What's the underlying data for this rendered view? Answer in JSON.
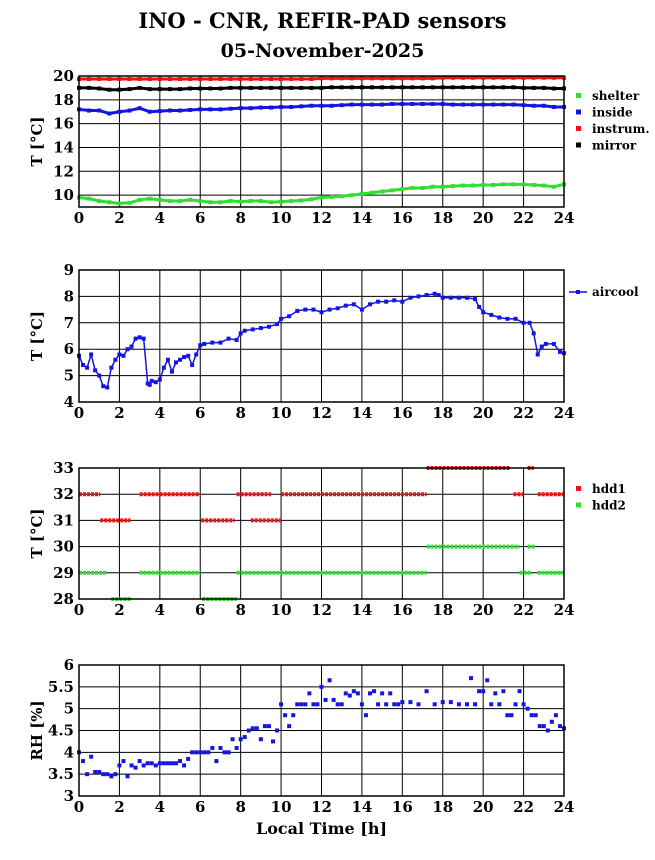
{
  "title": "INO - CNR, REFIR-PAD sensors",
  "subtitle": "05-November-2025",
  "chart_data": [
    {
      "type": "scatter",
      "ylabel": "T [°C]",
      "xlabel": "",
      "xlim": [
        0,
        24
      ],
      "ylim": [
        9,
        20
      ],
      "xticks": [
        "0",
        "2",
        "4",
        "6",
        "8",
        "10",
        "12",
        "14",
        "16",
        "18",
        "20",
        "22",
        "24"
      ],
      "yticks": [
        "10",
        "12",
        "14",
        "16",
        "18",
        "20"
      ],
      "grid": true,
      "legend_position": "right",
      "series": [
        {
          "name": "shelter",
          "color": "#33dd33",
          "x": [
            0,
            0.5,
            1,
            1.5,
            2,
            2.5,
            3,
            3.5,
            4,
            4.5,
            5,
            5.5,
            6,
            6.5,
            7,
            7.5,
            8,
            8.5,
            9,
            9.5,
            10,
            10.5,
            11,
            11.5,
            12,
            12.5,
            13,
            13.5,
            14,
            14.5,
            15,
            15.5,
            16,
            16.5,
            17,
            17.5,
            18,
            18.5,
            19,
            19.5,
            20,
            20.5,
            21,
            21.5,
            22,
            22.5,
            23,
            23.5,
            24
          ],
          "y": [
            9.8,
            9.7,
            9.5,
            9.4,
            9.3,
            9.35,
            9.6,
            9.7,
            9.6,
            9.5,
            9.5,
            9.6,
            9.5,
            9.4,
            9.4,
            9.5,
            9.45,
            9.5,
            9.5,
            9.4,
            9.45,
            9.5,
            9.55,
            9.65,
            9.8,
            9.85,
            9.9,
            10.0,
            10.1,
            10.2,
            10.3,
            10.4,
            10.5,
            10.6,
            10.6,
            10.7,
            10.7,
            10.75,
            10.8,
            10.8,
            10.85,
            10.85,
            10.9,
            10.9,
            10.9,
            10.85,
            10.8,
            10.7,
            10.9
          ]
        },
        {
          "name": "inside",
          "color": "#1515e0",
          "x": [
            0,
            0.5,
            1,
            1.5,
            2,
            2.5,
            3,
            3.5,
            4,
            4.5,
            5,
            5.5,
            6,
            6.5,
            7,
            7.5,
            8,
            8.5,
            9,
            9.5,
            10,
            10.5,
            11,
            11.5,
            12,
            12.5,
            13,
            13.5,
            14,
            14.5,
            15,
            15.5,
            16,
            16.5,
            17,
            17.5,
            18,
            18.5,
            19,
            19.5,
            20,
            20.5,
            21,
            21.5,
            22,
            22.5,
            23,
            23.5,
            24
          ],
          "y": [
            17.2,
            17.1,
            17.1,
            16.85,
            17.0,
            17.1,
            17.3,
            17.0,
            17.05,
            17.1,
            17.1,
            17.15,
            17.2,
            17.2,
            17.2,
            17.25,
            17.3,
            17.3,
            17.35,
            17.35,
            17.4,
            17.4,
            17.45,
            17.5,
            17.5,
            17.5,
            17.55,
            17.6,
            17.6,
            17.6,
            17.6,
            17.65,
            17.65,
            17.65,
            17.65,
            17.65,
            17.65,
            17.6,
            17.6,
            17.6,
            17.6,
            17.6,
            17.6,
            17.6,
            17.55,
            17.5,
            17.5,
            17.4,
            17.4
          ]
        },
        {
          "name": "instrum.",
          "color": "#ee1111",
          "x": [
            0,
            0.5,
            1,
            1.5,
            2,
            2.5,
            3,
            3.5,
            4,
            4.5,
            5,
            5.5,
            6,
            6.5,
            7,
            7.5,
            8,
            8.5,
            9,
            9.5,
            10,
            10.5,
            11,
            11.5,
            12,
            12.5,
            13,
            13.5,
            14,
            14.5,
            15,
            15.5,
            16,
            16.5,
            17,
            17.5,
            18,
            18.5,
            19,
            19.5,
            20,
            20.5,
            21,
            21.5,
            22,
            22.5,
            23,
            23.5,
            24
          ],
          "y": [
            19.75,
            19.75,
            19.75,
            19.75,
            19.75,
            19.75,
            19.75,
            19.75,
            19.75,
            19.75,
            19.75,
            19.75,
            19.75,
            19.75,
            19.75,
            19.75,
            19.75,
            19.75,
            19.75,
            19.75,
            19.75,
            19.75,
            19.75,
            19.75,
            19.8,
            19.8,
            19.8,
            19.8,
            19.8,
            19.8,
            19.8,
            19.8,
            19.8,
            19.8,
            19.8,
            19.8,
            19.85,
            19.85,
            19.85,
            19.85,
            19.85,
            19.85,
            19.85,
            19.85,
            19.85,
            19.85,
            19.85,
            19.85,
            19.85
          ]
        },
        {
          "name": "mirror",
          "color": "#000000",
          "x": [
            0,
            0.5,
            1,
            1.5,
            2,
            2.5,
            3,
            3.5,
            4,
            4.5,
            5,
            5.5,
            6,
            6.5,
            7,
            7.5,
            8,
            8.5,
            9,
            9.5,
            10,
            10.5,
            11,
            11.5,
            12,
            12.5,
            13,
            13.5,
            14,
            14.5,
            15,
            15.5,
            16,
            16.5,
            17,
            17.5,
            18,
            18.5,
            19,
            19.5,
            20,
            20.5,
            21,
            21.5,
            22,
            22.5,
            23,
            23.5,
            24
          ],
          "y": [
            19.0,
            19.0,
            18.95,
            18.85,
            18.85,
            18.9,
            19.0,
            18.9,
            18.9,
            18.9,
            18.9,
            18.95,
            18.95,
            18.95,
            18.95,
            19.0,
            19.0,
            19.0,
            19.0,
            19.0,
            19.0,
            19.0,
            19.0,
            19.0,
            19.0,
            19.05,
            19.05,
            19.05,
            19.05,
            19.05,
            19.05,
            19.05,
            19.05,
            19.05,
            19.05,
            19.05,
            19.05,
            19.05,
            19.05,
            19.05,
            19.05,
            19.05,
            19.05,
            19.05,
            19.0,
            19.0,
            19.0,
            18.95,
            18.95
          ]
        }
      ]
    },
    {
      "type": "line",
      "ylabel": "T [°C]",
      "xlabel": "",
      "xlim": [
        0,
        24
      ],
      "ylim": [
        4,
        9
      ],
      "xticks": [
        "0",
        "2",
        "4",
        "6",
        "8",
        "10",
        "12",
        "14",
        "16",
        "18",
        "20",
        "22",
        "24"
      ],
      "yticks": [
        "4",
        "5",
        "6",
        "7",
        "8",
        "9"
      ],
      "grid": true,
      "legend_position": "right",
      "series": [
        {
          "name": "aircool",
          "color": "#1515e0",
          "x": [
            0,
            0.2,
            0.4,
            0.6,
            0.8,
            1.0,
            1.2,
            1.4,
            1.6,
            1.8,
            2.0,
            2.2,
            2.4,
            2.6,
            2.8,
            3.0,
            3.2,
            3.4,
            3.5,
            3.6,
            3.8,
            4.0,
            4.2,
            4.4,
            4.6,
            4.8,
            5.0,
            5.2,
            5.4,
            5.6,
            5.8,
            6.0,
            6.2,
            6.6,
            7.0,
            7.4,
            7.8,
            8.0,
            8.2,
            8.6,
            9.0,
            9.4,
            9.8,
            10.0,
            10.4,
            10.8,
            11.2,
            11.6,
            12.0,
            12.4,
            12.8,
            13.2,
            13.6,
            14.0,
            14.4,
            14.8,
            15.2,
            15.6,
            16.0,
            16.4,
            16.8,
            17.2,
            17.6,
            17.8,
            18.0,
            18.4,
            18.8,
            19.2,
            19.6,
            19.8,
            20.0,
            20.4,
            20.8,
            21.2,
            21.6,
            22.0,
            22.3,
            22.5,
            22.7,
            22.9,
            23.1,
            23.5,
            23.8,
            24.0
          ],
          "y": [
            5.75,
            5.4,
            5.3,
            5.8,
            5.2,
            5.0,
            4.6,
            4.55,
            5.3,
            5.6,
            5.8,
            5.75,
            6.0,
            6.1,
            6.4,
            6.45,
            6.4,
            4.7,
            4.65,
            4.8,
            4.75,
            4.85,
            5.3,
            5.6,
            5.15,
            5.5,
            5.6,
            5.7,
            5.75,
            5.4,
            5.8,
            6.15,
            6.2,
            6.25,
            6.25,
            6.4,
            6.35,
            6.6,
            6.7,
            6.75,
            6.8,
            6.85,
            6.95,
            7.15,
            7.25,
            7.45,
            7.5,
            7.5,
            7.4,
            7.5,
            7.55,
            7.65,
            7.7,
            7.5,
            7.7,
            7.8,
            7.8,
            7.85,
            7.8,
            7.95,
            8.0,
            8.05,
            8.1,
            8.05,
            7.95,
            7.95,
            7.95,
            7.95,
            7.9,
            7.6,
            7.4,
            7.3,
            7.2,
            7.15,
            7.15,
            7.0,
            7.0,
            6.6,
            5.8,
            6.1,
            6.2,
            6.2,
            5.9,
            5.85
          ]
        }
      ]
    },
    {
      "type": "scatter",
      "ylabel": "T [°C]",
      "xlabel": "",
      "xlim": [
        0,
        24
      ],
      "ylim": [
        28,
        33
      ],
      "xticks": [
        "0",
        "2",
        "4",
        "6",
        "8",
        "10",
        "12",
        "14",
        "16",
        "18",
        "20",
        "22",
        "24"
      ],
      "yticks": [
        "28",
        "29",
        "30",
        "31",
        "32",
        "33"
      ],
      "grid": true,
      "legend_position": "right",
      "series": [
        {
          "name": "hdd1",
          "color": "#ee1111",
          "segments": [
            [
              0,
              1.05,
              32
            ],
            [
              1.05,
              2.55,
              31
            ],
            [
              3.0,
              6.0,
              32
            ],
            [
              6.05,
              7.7,
              31
            ],
            [
              7.8,
              9.5,
              32
            ],
            [
              8.5,
              10.0,
              31
            ],
            [
              10.0,
              17.2,
              32
            ],
            [
              17.2,
              21.3,
              33
            ],
            [
              21.5,
              22.0,
              32
            ],
            [
              22.2,
              22.5,
              33
            ],
            [
              22.7,
              24,
              32
            ]
          ]
        },
        {
          "name": "hdd2",
          "color": "#33dd33",
          "segments": [
            [
              0,
              1.4,
              29
            ],
            [
              1.6,
              2.6,
              28
            ],
            [
              3.0,
              6.0,
              29
            ],
            [
              6.1,
              7.8,
              28
            ],
            [
              7.8,
              17.2,
              29
            ],
            [
              17.2,
              21.8,
              30
            ],
            [
              21.8,
              22.4,
              29
            ],
            [
              22.2,
              22.6,
              30
            ],
            [
              22.7,
              24,
              29
            ]
          ]
        }
      ]
    },
    {
      "type": "scatter",
      "ylabel": "RH [%]",
      "xlabel": "Local Time [h]",
      "xlim": [
        0,
        24
      ],
      "ylim": [
        3,
        6
      ],
      "xticks": [
        "0",
        "2",
        "4",
        "6",
        "8",
        "10",
        "12",
        "14",
        "16",
        "18",
        "20",
        "22",
        "24"
      ],
      "yticks": [
        "3",
        "3.5",
        "4",
        "4.5",
        "5",
        "5.5",
        "6"
      ],
      "grid": true,
      "legend_position": "none",
      "series": [
        {
          "name": "",
          "color": "#1515e0",
          "x": [
            0,
            0.2,
            0.4,
            0.6,
            0.8,
            1.0,
            1.2,
            1.4,
            1.6,
            1.8,
            2.0,
            2.2,
            2.4,
            2.6,
            2.8,
            3.0,
            3.2,
            3.4,
            3.6,
            3.8,
            4.0,
            4.2,
            4.4,
            4.6,
            4.8,
            5.0,
            5.2,
            5.4,
            5.6,
            5.8,
            6.0,
            6.2,
            6.4,
            6.6,
            6.8,
            7.0,
            7.2,
            7.4,
            7.6,
            7.8,
            8.0,
            8.2,
            8.4,
            8.6,
            8.8,
            9.0,
            9.2,
            9.4,
            9.6,
            9.8,
            10.0,
            10.2,
            10.4,
            10.6,
            10.8,
            11.0,
            11.2,
            11.4,
            11.6,
            11.8,
            12.0,
            12.2,
            12.4,
            12.6,
            12.8,
            13.0,
            13.2,
            13.4,
            13.6,
            13.8,
            14.0,
            14.2,
            14.4,
            14.6,
            14.8,
            15.0,
            15.2,
            15.4,
            15.6,
            15.8,
            16.0,
            16.4,
            16.8,
            17.2,
            17.6,
            18.0,
            18.4,
            18.8,
            19.2,
            19.4,
            19.6,
            19.8,
            20.0,
            20.2,
            20.4,
            20.6,
            20.8,
            21.0,
            21.2,
            21.4,
            21.6,
            21.8,
            22.0,
            22.2,
            22.4,
            22.6,
            22.8,
            23.0,
            23.2,
            23.4,
            23.6,
            23.8,
            24.0
          ],
          "y": [
            4.0,
            3.8,
            3.5,
            3.9,
            3.55,
            3.55,
            3.5,
            3.5,
            3.45,
            3.5,
            3.7,
            3.8,
            3.45,
            3.7,
            3.65,
            3.8,
            3.7,
            3.75,
            3.75,
            3.7,
            3.75,
            3.75,
            3.75,
            3.75,
            3.75,
            3.8,
            3.7,
            3.85,
            4.0,
            4.0,
            4.0,
            4.0,
            4.0,
            4.1,
            3.8,
            4.1,
            4.0,
            4.0,
            4.3,
            4.1,
            4.3,
            4.35,
            4.5,
            4.55,
            4.55,
            4.3,
            4.6,
            4.6,
            4.25,
            4.5,
            5.1,
            4.85,
            4.6,
            4.85,
            5.1,
            5.1,
            5.1,
            5.35,
            5.1,
            5.1,
            5.5,
            5.2,
            5.65,
            5.2,
            5.1,
            5.1,
            5.35,
            5.3,
            5.4,
            5.35,
            5.1,
            4.85,
            5.35,
            5.4,
            5.1,
            5.35,
            5.1,
            5.35,
            5.1,
            5.1,
            5.15,
            5.15,
            5.1,
            5.4,
            5.1,
            5.15,
            5.15,
            5.1,
            5.1,
            5.7,
            5.1,
            5.4,
            5.4,
            5.65,
            5.1,
            5.35,
            5.1,
            5.4,
            4.85,
            4.85,
            5.1,
            5.4,
            5.1,
            5.0,
            4.85,
            4.85,
            4.6,
            4.6,
            4.5,
            4.7,
            4.85,
            4.6,
            4.55
          ]
        }
      ]
    }
  ]
}
